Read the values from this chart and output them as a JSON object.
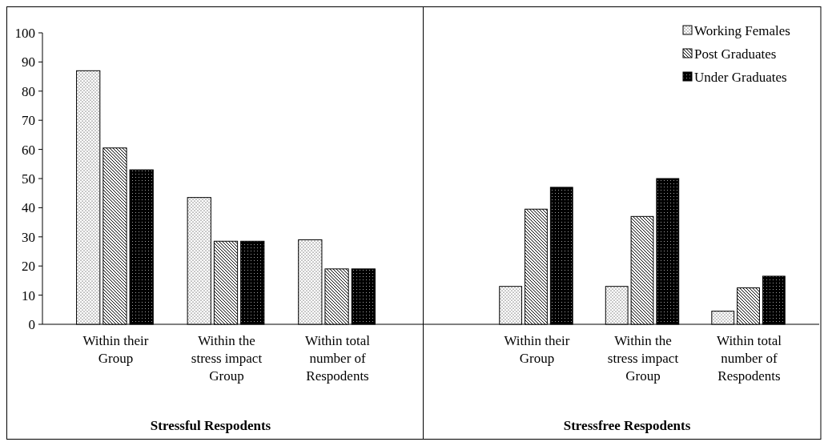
{
  "chart_data": [
    {
      "type": "bar",
      "xlabel": "Stressful Respodents",
      "categories": [
        "Within their Group",
        "Within the stress impact Group",
        "Within total number of Respodents"
      ],
      "ylim": [
        0,
        100
      ],
      "yticks": [
        0,
        10,
        20,
        30,
        40,
        50,
        60,
        70,
        80,
        90,
        100
      ],
      "legend": false,
      "series": [
        {
          "color": "#000000",
          "values": [
            87,
            43.5,
            29
          ]
        },
        {
          "color": "#000000",
          "values": [
            60.5,
            28.5,
            19
          ]
        },
        {
          "color": "#000000",
          "values": [
            53,
            28.5,
            19
          ]
        }
      ]
    },
    {
      "type": "bar",
      "xlabel": "Stressfree Respodents",
      "categories": [
        "Within their Group",
        "Within the stress impact Group",
        "Within total number of Respodents"
      ],
      "ylim": [
        0,
        100
      ],
      "tick_labels": "x",
      "legend": "top right",
      "series": [
        {
          "name": "Working Females",
          "color": "#000000",
          "values": [
            13,
            13,
            4.5
          ]
        },
        {
          "name": "Post Graduates",
          "color": "#000000",
          "values": [
            39.5,
            37,
            12.5
          ]
        },
        {
          "name": "Under Graduates",
          "color": "#000000",
          "values": [
            47,
            50,
            16.5
          ]
        }
      ]
    }
  ]
}
